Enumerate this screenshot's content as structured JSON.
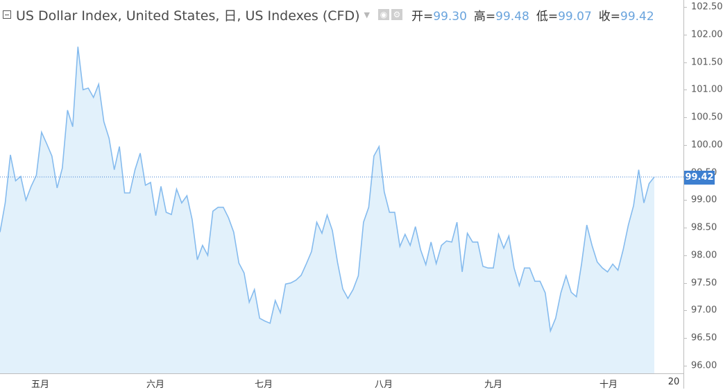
{
  "legend": {
    "title": "US Dollar Index, United States, 日, US Indexes (CFD)",
    "open_label": "开=",
    "open_value": "99.30",
    "high_label": "高=",
    "high_value": "99.48",
    "low_label": "低=",
    "low_value": "99.07",
    "close_label": "收=",
    "close_value": "99.42"
  },
  "chart_data": {
    "type": "area",
    "title": "US Dollar Index, United States, 日, US Indexes (CFD)",
    "x_tick_labels": [
      "五月",
      "六月",
      "七月",
      "八月",
      "九月",
      "十月",
      "20"
    ],
    "y_tick_labels": [
      "96.00",
      "96.50",
      "97.00",
      "97.50",
      "98.00",
      "98.50",
      "99.00",
      "99.50",
      "100.00",
      "100.50",
      "101.00",
      "101.50",
      "102.00",
      "102.50"
    ],
    "ylim": [
      95.85,
      102.6
    ],
    "last_price": 99.42,
    "values": [
      98.42,
      98.95,
      99.82,
      99.35,
      99.43,
      99.0,
      99.25,
      99.45,
      100.23,
      100.02,
      99.8,
      99.22,
      99.58,
      100.63,
      100.33,
      101.78,
      101.0,
      101.03,
      100.86,
      101.1,
      100.42,
      100.12,
      99.55,
      99.97,
      99.13,
      99.13,
      99.55,
      99.85,
      99.27,
      99.32,
      98.72,
      99.25,
      98.78,
      98.74,
      99.2,
      98.95,
      99.08,
      98.65,
      97.92,
      98.18,
      98.0,
      98.8,
      98.87,
      98.87,
      98.68,
      98.42,
      97.86,
      97.68,
      97.15,
      97.38,
      96.86,
      96.81,
      96.77,
      97.18,
      96.96,
      97.48,
      97.5,
      97.55,
      97.64,
      97.85,
      98.07,
      98.6,
      98.4,
      98.73,
      98.45,
      97.87,
      97.39,
      97.22,
      97.38,
      97.63,
      98.6,
      98.87,
      99.8,
      99.97,
      99.15,
      98.78,
      98.78,
      98.16,
      98.38,
      98.18,
      98.52,
      98.1,
      97.83,
      98.24,
      97.85,
      98.18,
      98.26,
      98.24,
      98.6,
      97.7,
      98.4,
      98.24,
      98.24,
      97.8,
      97.77,
      97.77,
      98.38,
      98.13,
      98.35,
      97.77,
      97.45,
      97.77,
      97.77,
      97.53,
      97.53,
      97.32,
      96.63,
      96.86,
      97.32,
      97.63,
      97.33,
      97.25,
      97.85,
      98.55,
      98.18,
      97.88,
      97.77,
      97.7,
      97.84,
      97.73,
      98.1,
      98.55,
      98.9,
      99.55,
      98.95,
      99.3,
      99.42
    ]
  },
  "colors": {
    "line": "#85bbee",
    "fill": "#e2f1fb",
    "price_line": "#3d7fd0",
    "price_tag": "#3d7fd0",
    "ohlc_value": "#6aa4dd"
  }
}
